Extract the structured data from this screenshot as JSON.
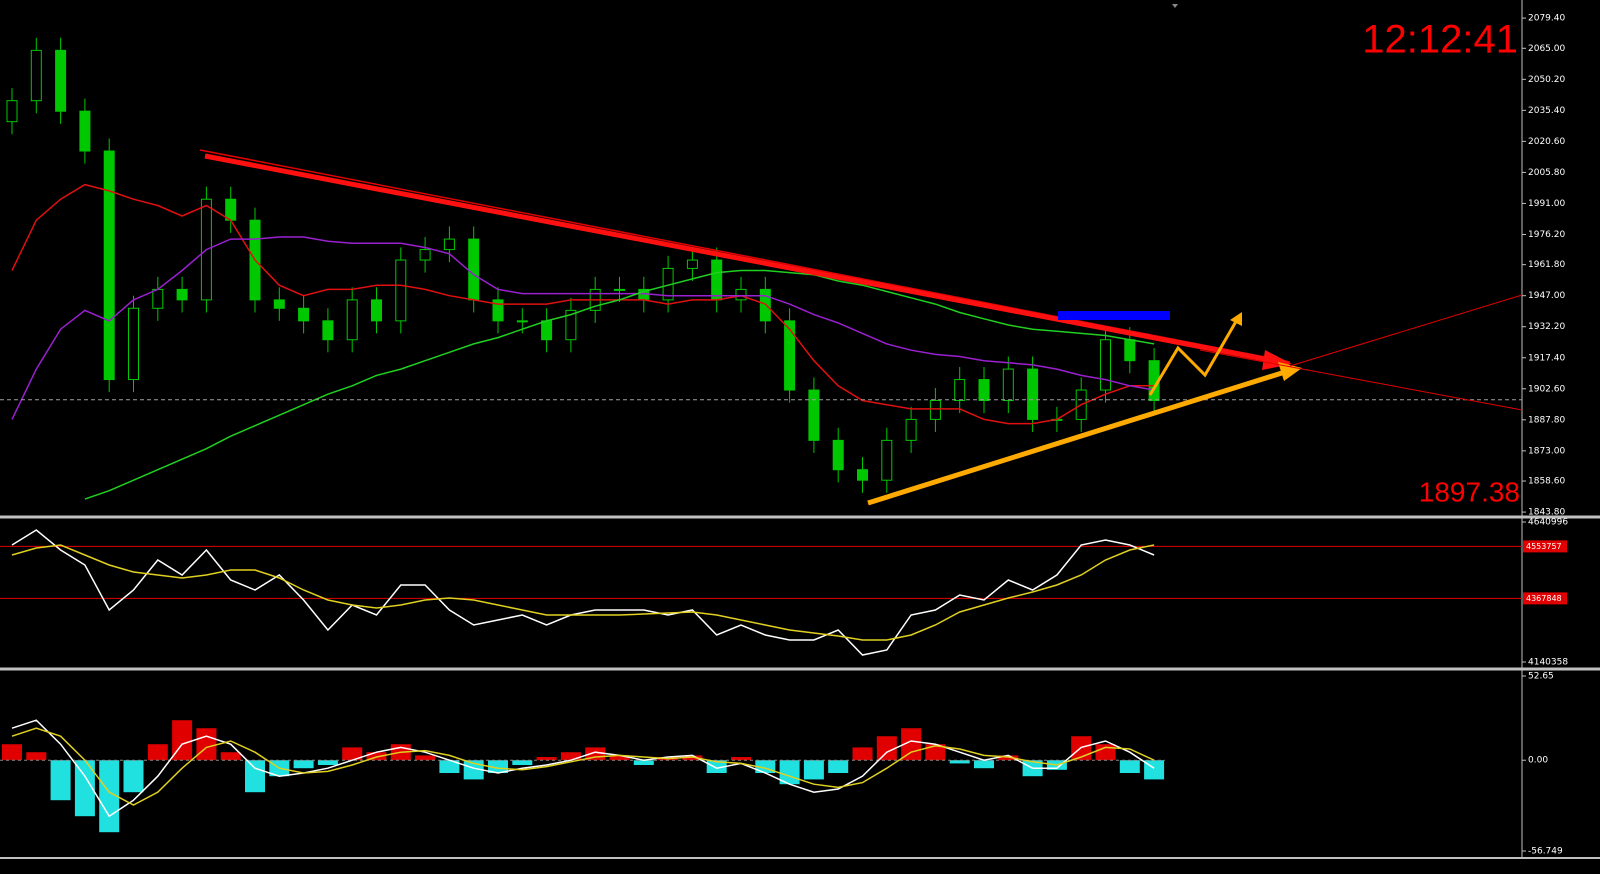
{
  "chart_data": [
    {
      "type": "candlestick",
      "clock": "12:12:41",
      "last_price": 1897.38,
      "last_price_color": "#a0a0a0",
      "up_color": "#00c800",
      "down_color": "#00c800",
      "open": [
        2030,
        2040,
        2064,
        2035,
        2016,
        1907,
        1941,
        1950,
        1945,
        1993,
        1983,
        1945,
        1941,
        1935,
        1926,
        1945,
        1935,
        1964,
        1969,
        1974,
        1945,
        1935,
        1935,
        1926,
        1940,
        1950,
        1950,
        1945,
        1960,
        1964,
        1945,
        1950,
        1935,
        1902,
        1878,
        1864,
        1859,
        1878,
        1888,
        1897,
        1907,
        1897,
        1912,
        1888,
        1888,
        1902,
        1926,
        1916
      ],
      "high": [
        2046,
        2070,
        2070,
        2041,
        2022,
        1947,
        1956,
        1956,
        1999,
        1999,
        1989,
        1951,
        1947,
        1941,
        1951,
        1951,
        1970,
        1975,
        1980,
        1980,
        1951,
        1941,
        1941,
        1946,
        1956,
        1956,
        1956,
        1966,
        1970,
        1970,
        1956,
        1956,
        1941,
        1908,
        1884,
        1870,
        1884,
        1894,
        1903,
        1913,
        1913,
        1918,
        1918,
        1894,
        1908,
        1932,
        1932,
        1922
      ],
      "low": [
        2024,
        2034,
        2029,
        2010,
        1901,
        1901,
        1935,
        1939,
        1939,
        1977,
        1939,
        1935,
        1929,
        1920,
        1920,
        1929,
        1929,
        1958,
        1963,
        1939,
        1929,
        1929,
        1920,
        1920,
        1934,
        1944,
        1939,
        1939,
        1954,
        1939,
        1939,
        1929,
        1896,
        1872,
        1858,
        1853,
        1853,
        1872,
        1882,
        1891,
        1891,
        1891,
        1882,
        1882,
        1882,
        1896,
        1910,
        1891
      ],
      "close": [
        2040,
        2064,
        2035,
        2016,
        1907,
        1941,
        1950,
        1945,
        1993,
        1983,
        1945,
        1941,
        1935,
        1926,
        1945,
        1935,
        1964,
        1969,
        1974,
        1945,
        1935,
        1935,
        1926,
        1940,
        1950,
        1950,
        1945,
        1960,
        1964,
        1945,
        1950,
        1935,
        1902,
        1878,
        1864,
        1859,
        1878,
        1888,
        1897,
        1907,
        1897,
        1912,
        1888,
        1888,
        1902,
        1926,
        1916,
        1897
      ],
      "series": [
        {
          "color": "#e01010",
          "values": [
            1959,
            1983,
            1993,
            2000,
            1997,
            1993,
            1990,
            1985,
            1990,
            1983,
            1964,
            1952,
            1947,
            1950,
            1950,
            1952,
            1952,
            1950,
            1947,
            1945,
            1943,
            1943,
            1943,
            1945,
            1945,
            1945,
            1945,
            1943,
            1945,
            1945,
            1947,
            1943,
            1931,
            1916,
            1904,
            1897,
            1895,
            1893,
            1893,
            1893,
            1888,
            1886,
            1886,
            1888,
            1895,
            1900,
            1904,
            1904
          ]
        },
        {
          "color": "#9a20d0",
          "values": [
            1888,
            1912,
            1931,
            1940,
            1935,
            1945,
            1950,
            1959,
            1969,
            1974,
            1974,
            1975,
            1975,
            1973,
            1972,
            1972,
            1972,
            1970,
            1967,
            1957,
            1950,
            1948,
            1948,
            1948,
            1948,
            1948,
            1948,
            1947,
            1947,
            1947,
            1947,
            1947,
            1943,
            1938,
            1934,
            1929,
            1924,
            1921,
            1919,
            1918,
            1916,
            1915,
            1914,
            1912,
            1909,
            1907,
            1904,
            1902
          ]
        },
        {
          "color": "#20d020",
          "values": [
            null,
            null,
            null,
            1850,
            1854,
            1859,
            1864,
            1869,
            1874,
            1880,
            1885,
            1890,
            1895,
            1900,
            1904,
            1909,
            1912,
            1916,
            1920,
            1924,
            1927,
            1931,
            1935,
            1938,
            1942,
            1945,
            1949,
            1952,
            1955,
            1958,
            1959,
            1959,
            1958,
            1957,
            1954,
            1952,
            1949,
            1946,
            1943,
            1939,
            1936,
            1933,
            1931,
            1930,
            1929,
            1928,
            1926,
            1924
          ]
        }
      ],
      "ylim": [
        1842.4,
        2086.6
      ],
      "yticks": [
        {
          "value": 2079.4,
          "label": "2079.40"
        },
        {
          "value": 2065,
          "label": "2065.00"
        },
        {
          "value": 2050.2,
          "label": "2050.20"
        },
        {
          "value": 2035.4,
          "label": "2035.40"
        },
        {
          "value": 2020.6,
          "label": "2020.60"
        },
        {
          "value": 2005.8,
          "label": "2005.80"
        },
        {
          "value": 1991,
          "label": "1991.00"
        },
        {
          "value": 1976.2,
          "label": "1976.20"
        },
        {
          "value": 1961.8,
          "label": "1961.80"
        },
        {
          "value": 1947,
          "label": "1947.00"
        },
        {
          "value": 1932.2,
          "label": "1932.20"
        },
        {
          "value": 1917.4,
          "label": "1917.40"
        },
        {
          "value": 1902.6,
          "label": "1902.60"
        },
        {
          "value": 1887.8,
          "label": "1887.80"
        },
        {
          "value": 1873,
          "label": "1873.00"
        },
        {
          "value": 1858.6,
          "label": "1858.60"
        },
        {
          "value": 1843.8,
          "label": "1843.80"
        }
      ]
    },
    {
      "type": "line",
      "series": [
        {
          "color": "#ffffff",
          "values": [
            4558748,
            4612388,
            4540868,
            4487228,
            4326308,
            4397828,
            4505108,
            4451468,
            4540868,
            4433588,
            4397828,
            4451468,
            4362068,
            4254788,
            4344188,
            4308428,
            4415708,
            4415708,
            4326308,
            4272668,
            4290548,
            4308428,
            4272668,
            4308428,
            4326308,
            4326308,
            4326308,
            4308428,
            4326308,
            4236908,
            4272668,
            4236908,
            4219028,
            4219028,
            4254788,
            4165388,
            4183268,
            4308428,
            4326308,
            4379948,
            4362068,
            4433588,
            4397828,
            4451468,
            4558748,
            4576628,
            4558748,
            4522988
          ]
        },
        {
          "color": "#e0d020",
          "values": [
            4522988,
            4548020,
            4558748,
            4522988,
            4487228,
            4462196,
            4451468,
            4440740,
            4451468,
            4469348,
            4469348,
            4440740,
            4397828,
            4362068,
            4344188,
            4333460,
            4344188,
            4362068,
            4369220,
            4362068,
            4344188,
            4326308,
            4308428,
            4308428,
            4308428,
            4308428,
            4312004,
            4315580,
            4319156,
            4308428,
            4290548,
            4272668,
            4254788,
            4244060,
            4233332,
            4219028,
            4219028,
            4236908,
            4272668,
            4319156,
            4344188,
            4369220,
            4390676,
            4415708,
            4451468,
            4505108,
            4540868,
            4558748
          ]
        }
      ],
      "levels": [
        4553757,
        4367848
      ],
      "level_color": "#e00000",
      "ylim": [
        4140358,
        4640996
      ],
      "yticks": [
        4640996,
        4140358
      ]
    },
    {
      "type": "macd",
      "up_color": "#e00000",
      "down_color": "#20e0e0",
      "histogram": [
        10,
        5,
        -25,
        -35,
        -45,
        -20,
        10,
        25,
        20,
        5,
        -20,
        -10,
        -5,
        -3,
        8,
        5,
        10,
        3,
        -8,
        -12,
        -8,
        -3,
        2,
        5,
        8,
        3,
        -3,
        2,
        3,
        -8,
        2,
        -8,
        -15,
        -12,
        -8,
        8,
        15,
        20,
        10,
        -2,
        -5,
        3,
        -10,
        -6,
        15,
        10,
        -8,
        -12
      ],
      "series": [
        {
          "color": "#ffffff",
          "values": [
            20,
            25,
            10,
            -10,
            -35,
            -25,
            -10,
            10,
            15,
            10,
            -5,
            -10,
            -8,
            -5,
            0,
            5,
            8,
            5,
            0,
            -5,
            -8,
            -5,
            -3,
            0,
            5,
            3,
            0,
            2,
            3,
            -5,
            -2,
            -8,
            -15,
            -20,
            -18,
            -10,
            5,
            12,
            10,
            5,
            0,
            3,
            -5,
            -5,
            8,
            12,
            5,
            -5
          ]
        },
        {
          "color": "#e0d020",
          "values": [
            15,
            20,
            15,
            0,
            -20,
            -28,
            -20,
            -5,
            8,
            12,
            5,
            -5,
            -8,
            -7,
            -3,
            2,
            5,
            6,
            3,
            -2,
            -5,
            -6,
            -4,
            -1,
            2,
            3,
            2,
            1,
            2,
            -1,
            -2,
            -5,
            -10,
            -15,
            -17,
            -14,
            -5,
            5,
            9,
            7,
            3,
            2,
            -1,
            -3,
            2,
            8,
            7,
            0
          ]
        }
      ],
      "ylim": [
        -56.749,
        52.65
      ],
      "yticks": [
        52.65,
        {
          "value": 0,
          "label": "0.00"
        },
        -56.749
      ]
    }
  ]
}
